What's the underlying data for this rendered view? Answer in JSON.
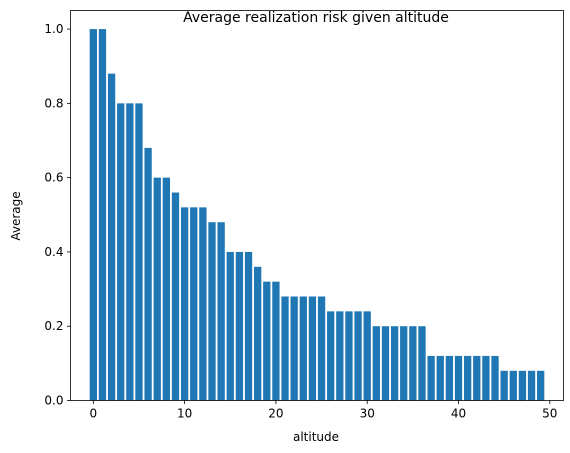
{
  "chart_data": {
    "type": "bar",
    "title": "Average realization risk given altitude",
    "xlabel": "altitude",
    "ylabel": "Average",
    "x": [
      0,
      1,
      2,
      3,
      4,
      5,
      6,
      7,
      8,
      9,
      10,
      11,
      12,
      13,
      14,
      15,
      16,
      17,
      18,
      19,
      20,
      21,
      22,
      23,
      24,
      25,
      26,
      27,
      28,
      29,
      30,
      31,
      32,
      33,
      34,
      35,
      36,
      37,
      38,
      39,
      40,
      41,
      42,
      43,
      44,
      45,
      46,
      47,
      48,
      49
    ],
    "values": [
      1.0,
      1.0,
      0.88,
      0.8,
      0.8,
      0.8,
      0.68,
      0.6,
      0.6,
      0.56,
      0.52,
      0.52,
      0.52,
      0.48,
      0.48,
      0.4,
      0.4,
      0.4,
      0.36,
      0.32,
      0.32,
      0.28,
      0.28,
      0.28,
      0.28,
      0.28,
      0.24,
      0.24,
      0.24,
      0.24,
      0.24,
      0.2,
      0.2,
      0.2,
      0.2,
      0.2,
      0.2,
      0.12,
      0.12,
      0.12,
      0.12,
      0.12,
      0.12,
      0.12,
      0.12,
      0.08,
      0.08,
      0.08,
      0.08,
      0.08
    ],
    "xlim": [
      -2.5,
      51.5
    ],
    "ylim": [
      0,
      1.05
    ],
    "xticks": [
      "0",
      "10",
      "20",
      "30",
      "40",
      "50"
    ],
    "yticks": [
      "0.0",
      "0.2",
      "0.4",
      "0.6",
      "0.8",
      "1.0"
    ],
    "bar_color": "#1f77b4",
    "grid": false,
    "legend": "none"
  }
}
